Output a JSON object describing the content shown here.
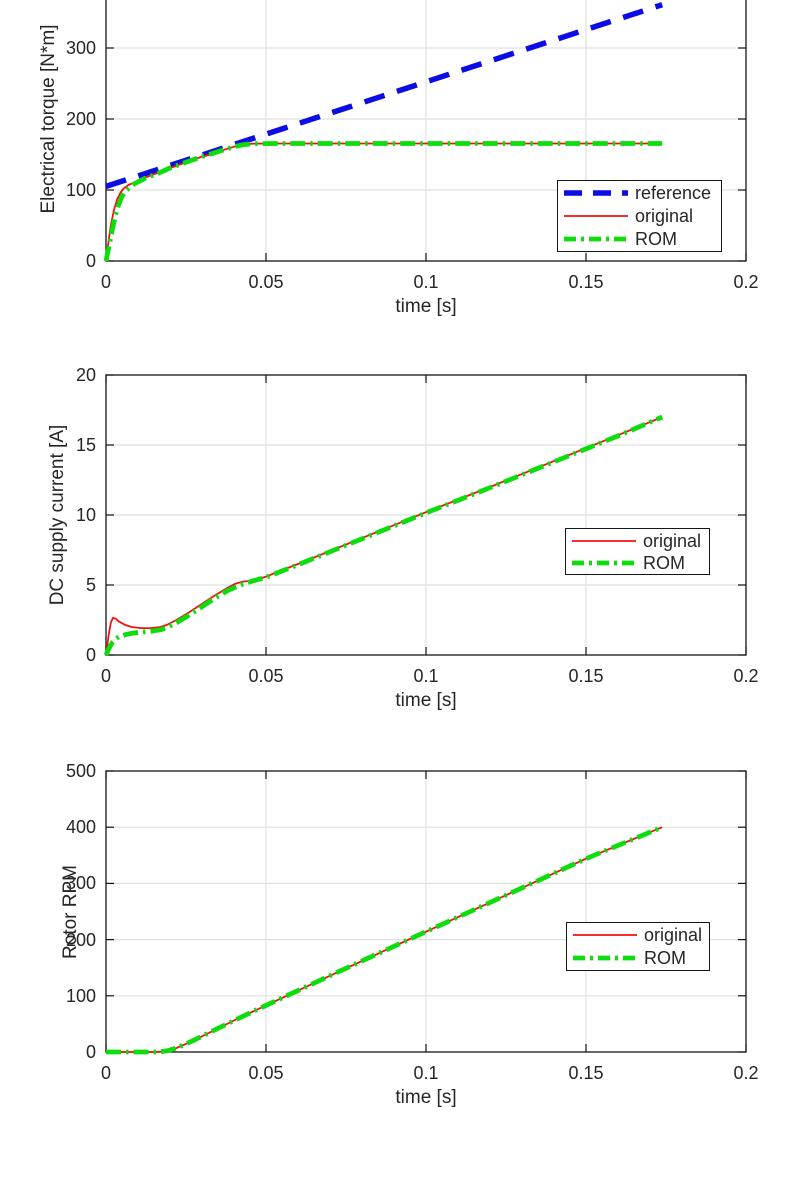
{
  "canvas": {
    "background": "#ffffff",
    "axis_color": "#151515",
    "grid_color": "#e0e0e0",
    "text_color": "#262626"
  },
  "chart_data": [
    {
      "type": "line",
      "title": "",
      "xlabel": "time [s]",
      "ylabel": "Electrical torque [N*m]",
      "xlim": [
        0,
        0.2
      ],
      "ylim": [
        0,
        400
      ],
      "grid": true,
      "xticks": {
        "values": [
          0,
          0.05,
          0.1,
          0.15,
          0.2
        ],
        "labels": [
          "0",
          "0.05",
          "0.1",
          "0.15",
          "0.2"
        ]
      },
      "yticks": {
        "values": [
          0,
          100,
          200,
          300
        ],
        "labels": [
          "0",
          "100",
          "200",
          "300"
        ]
      },
      "legend": {
        "position": "lower right",
        "entries": [
          "reference",
          "original",
          "ROM"
        ]
      },
      "series": [
        {
          "name": "reference",
          "color": "#0c0ce4",
          "style": "dashed",
          "points": [
            [
              0,
              105
            ],
            [
              0.1738,
              361
            ]
          ]
        },
        {
          "name": "original",
          "color": "#f01212",
          "style": "solid",
          "points": [
            [
              0,
              0
            ],
            [
              0.0008,
              28
            ],
            [
              0.0015,
              50
            ],
            [
              0.0025,
              72
            ],
            [
              0.0035,
              87
            ],
            [
              0.0045,
              96
            ],
            [
              0.0055,
              102
            ],
            [
              0.007,
              107
            ],
            [
              0.009,
              111
            ],
            [
              0.012,
              117
            ],
            [
              0.016,
              124
            ],
            [
              0.02,
              131
            ],
            [
              0.025,
              139
            ],
            [
              0.03,
              147
            ],
            [
              0.035,
              154
            ],
            [
              0.04,
              161
            ],
            [
              0.042,
              163.5
            ],
            [
              0.044,
              164.8
            ],
            [
              0.047,
              165.4
            ],
            [
              0.055,
              165.5
            ],
            [
              0.1738,
              165.5
            ]
          ]
        },
        {
          "name": "ROM",
          "color": "#0ddd0d",
          "style": "dashdot",
          "points": [
            [
              0,
              0
            ],
            [
              0.001,
              22
            ],
            [
              0.002,
              45
            ],
            [
              0.003,
              65
            ],
            [
              0.004,
              80
            ],
            [
              0.005,
              91
            ],
            [
              0.006,
              98
            ],
            [
              0.0075,
              104
            ],
            [
              0.009,
              109
            ],
            [
              0.012,
              116
            ],
            [
              0.016,
              123
            ],
            [
              0.02,
              131
            ],
            [
              0.025,
              139
            ],
            [
              0.03,
              147
            ],
            [
              0.035,
              154
            ],
            [
              0.04,
              161
            ],
            [
              0.043,
              164
            ],
            [
              0.046,
              165.2
            ],
            [
              0.055,
              165.5
            ],
            [
              0.1738,
              165.5
            ]
          ]
        }
      ]
    },
    {
      "type": "line",
      "title": "",
      "xlabel": "time [s]",
      "ylabel": "DC supply current [A]",
      "xlim": [
        0,
        0.2
      ],
      "ylim": [
        0,
        20
      ],
      "grid": true,
      "xticks": {
        "values": [
          0,
          0.05,
          0.1,
          0.15,
          0.2
        ],
        "labels": [
          "0",
          "0.05",
          "0.1",
          "0.15",
          "0.2"
        ]
      },
      "yticks": {
        "values": [
          0,
          5,
          10,
          15,
          20
        ],
        "labels": [
          "0",
          "5",
          "10",
          "15",
          "20"
        ]
      },
      "legend": {
        "position": "right",
        "entries": [
          "original",
          "ROM"
        ]
      },
      "series": [
        {
          "name": "original",
          "color": "#f01212",
          "style": "solid",
          "points": [
            [
              0,
              0
            ],
            [
              0.0008,
              1.4
            ],
            [
              0.0015,
              2.3
            ],
            [
              0.0022,
              2.65
            ],
            [
              0.003,
              2.6
            ],
            [
              0.004,
              2.4
            ],
            [
              0.006,
              2.15
            ],
            [
              0.008,
              2.0
            ],
            [
              0.011,
              1.92
            ],
            [
              0.014,
              1.92
            ],
            [
              0.017,
              2.0
            ],
            [
              0.019,
              2.15
            ],
            [
              0.022,
              2.5
            ],
            [
              0.026,
              3.05
            ],
            [
              0.03,
              3.65
            ],
            [
              0.034,
              4.25
            ],
            [
              0.038,
              4.8
            ],
            [
              0.0405,
              5.1
            ],
            [
              0.043,
              5.25
            ],
            [
              0.046,
              5.3
            ],
            [
              0.05,
              5.6
            ],
            [
              0.06,
              6.5
            ],
            [
              0.08,
              8.35
            ],
            [
              0.1,
              10.2
            ],
            [
              0.12,
              12.0
            ],
            [
              0.14,
              13.85
            ],
            [
              0.16,
              15.7
            ],
            [
              0.1738,
              17
            ]
          ]
        },
        {
          "name": "ROM",
          "color": "#0ddd0d",
          "style": "dashdot",
          "points": [
            [
              0,
              0
            ],
            [
              0.001,
              0.5
            ],
            [
              0.002,
              0.9
            ],
            [
              0.003,
              1.15
            ],
            [
              0.004,
              1.3
            ],
            [
              0.006,
              1.45
            ],
            [
              0.008,
              1.55
            ],
            [
              0.011,
              1.63
            ],
            [
              0.014,
              1.7
            ],
            [
              0.017,
              1.8
            ],
            [
              0.019,
              1.95
            ],
            [
              0.022,
              2.3
            ],
            [
              0.026,
              2.85
            ],
            [
              0.03,
              3.45
            ],
            [
              0.034,
              4.05
            ],
            [
              0.038,
              4.6
            ],
            [
              0.042,
              5.0
            ],
            [
              0.046,
              5.3
            ],
            [
              0.05,
              5.55
            ],
            [
              0.06,
              6.45
            ],
            [
              0.08,
              8.3
            ],
            [
              0.1,
              10.15
            ],
            [
              0.12,
              11.95
            ],
            [
              0.14,
              13.8
            ],
            [
              0.16,
              15.65
            ],
            [
              0.1738,
              17
            ]
          ]
        }
      ]
    },
    {
      "type": "line",
      "title": "",
      "xlabel": "time [s]",
      "ylabel": "Rotor RPM",
      "xlim": [
        0,
        0.2
      ],
      "ylim": [
        0,
        500
      ],
      "grid": true,
      "xticks": {
        "values": [
          0,
          0.05,
          0.1,
          0.15,
          0.2
        ],
        "labels": [
          "0",
          "0.05",
          "0.1",
          "0.15",
          "0.2"
        ]
      },
      "yticks": {
        "values": [
          0,
          100,
          200,
          300,
          400,
          500
        ],
        "labels": [
          "0",
          "100",
          "200",
          "300",
          "400",
          "500"
        ]
      },
      "legend": {
        "position": "right",
        "entries": [
          "original",
          "ROM"
        ]
      },
      "series": [
        {
          "name": "original",
          "color": "#f01212",
          "style": "solid",
          "points": [
            [
              0,
              0
            ],
            [
              0.015,
              0
            ],
            [
              0.017,
              0.5
            ],
            [
              0.019,
              2
            ],
            [
              0.022,
              7
            ],
            [
              0.026,
              17
            ],
            [
              0.03,
              28
            ],
            [
              0.035,
              42
            ],
            [
              0.04,
              56
            ],
            [
              0.05,
              83
            ],
            [
              0.075,
              149
            ],
            [
              0.1,
              214
            ],
            [
              0.125,
              279
            ],
            [
              0.15,
              344
            ],
            [
              0.1738,
              400
            ]
          ]
        },
        {
          "name": "ROM",
          "color": "#0ddd0d",
          "style": "dashdot",
          "points": [
            [
              0,
              0
            ],
            [
              0.015,
              0
            ],
            [
              0.017,
              0.5
            ],
            [
              0.019,
              2
            ],
            [
              0.022,
              7
            ],
            [
              0.026,
              17
            ],
            [
              0.03,
              28
            ],
            [
              0.035,
              42
            ],
            [
              0.04,
              56
            ],
            [
              0.05,
              83
            ],
            [
              0.075,
              149
            ],
            [
              0.1,
              214
            ],
            [
              0.125,
              279
            ],
            [
              0.15,
              344
            ],
            [
              0.1738,
              400
            ]
          ]
        }
      ]
    }
  ]
}
